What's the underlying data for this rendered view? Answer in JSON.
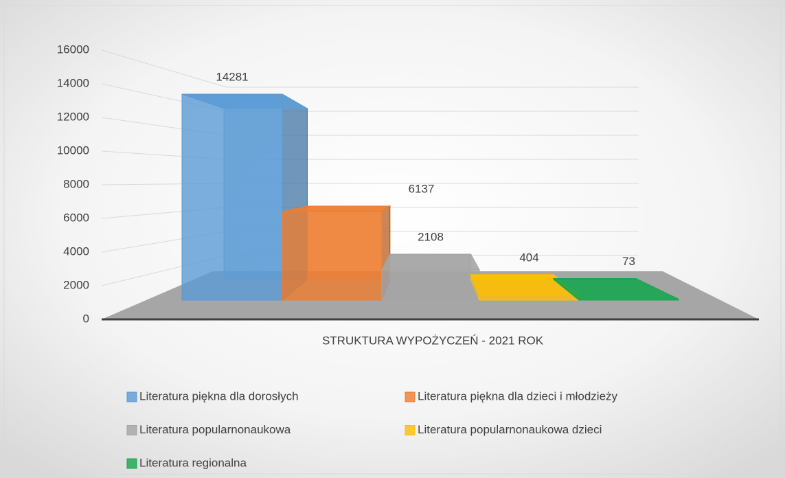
{
  "chart_data": {
    "type": "bar",
    "categories": [
      "STRUKTURA WYPOŻYCZEŃ - 2021 ROK"
    ],
    "series": [
      {
        "name": "Literatura piękna dla dorosłych",
        "color": "#5b9bd5",
        "values": [
          14281
        ]
      },
      {
        "name": "Literatura piękna dla dzieci i młodzieży",
        "color": "#ed7d31",
        "values": [
          6137
        ]
      },
      {
        "name": "Literatura popularnonaukowa",
        "color": "#a5a5a5",
        "values": [
          2108
        ]
      },
      {
        "name": "Literatura popularnonaukowa dzieci",
        "color": "#ffc000",
        "values": [
          404
        ]
      },
      {
        "name": "Literatura regionalna",
        "color": "#1aa550",
        "values": [
          73
        ]
      }
    ],
    "ylim": [
      0,
      16000
    ],
    "yticks": [
      0,
      2000,
      4000,
      6000,
      8000,
      10000,
      12000,
      14000,
      16000
    ],
    "grid": true,
    "legend": "bottom"
  }
}
